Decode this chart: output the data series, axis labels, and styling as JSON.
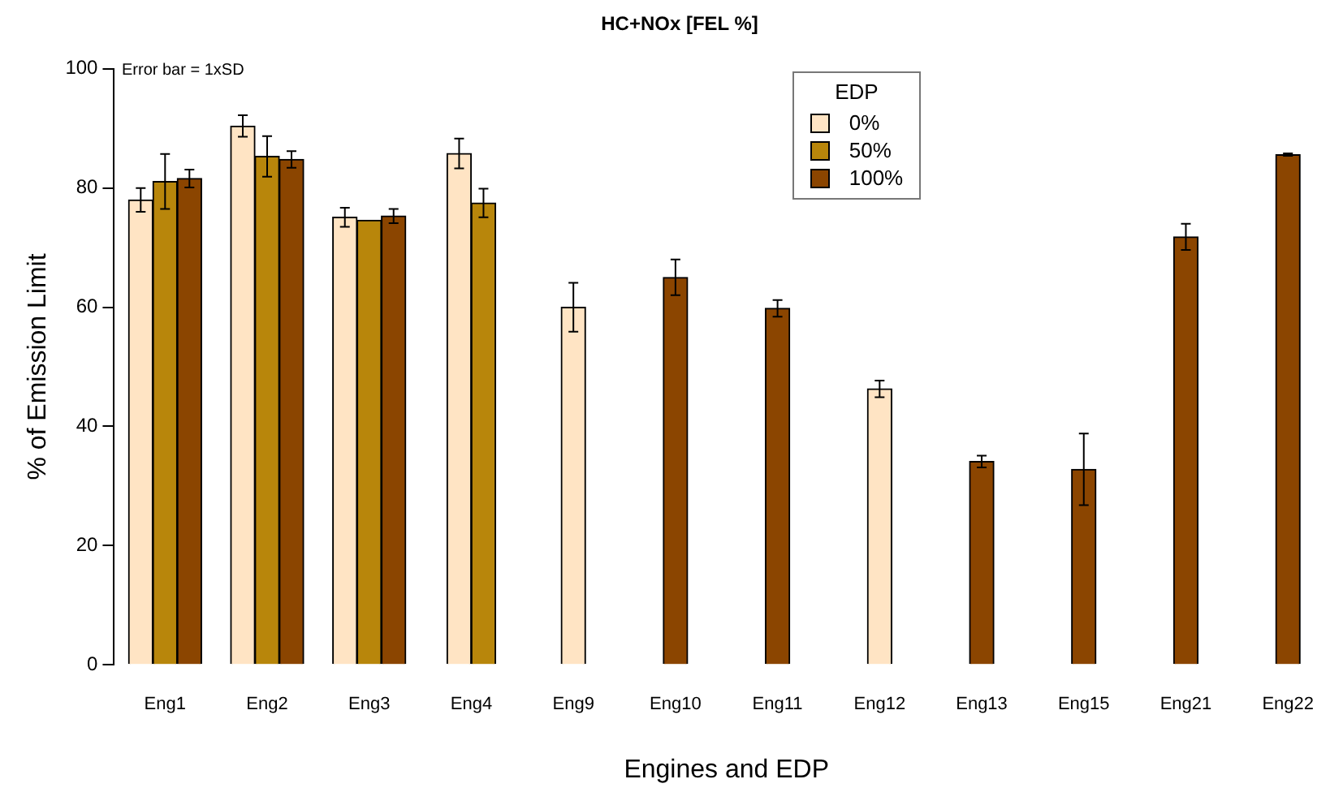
{
  "chart_data": {
    "type": "bar",
    "title": "HC+NOx [FEL %]",
    "xlabel": "Engines and EDP",
    "ylabel": "% of Emission Limit",
    "legend_title": "EDP",
    "legend": "top",
    "grid": false,
    "annotations": [
      "Error bar = 1xSD"
    ],
    "categories": [
      "Eng1",
      "Eng2",
      "Eng3",
      "Eng4",
      "Eng9",
      "Eng10",
      "Eng11",
      "Eng12",
      "Eng13",
      "Eng15",
      "Eng21",
      "Eng22"
    ],
    "ylim": [
      0,
      100
    ],
    "yticks": [
      0,
      20,
      40,
      60,
      80,
      100
    ],
    "series": [
      {
        "name": "0%",
        "color": "#ffe4c4",
        "values": [
          78,
          90.4,
          75.1,
          85.8,
          60,
          null,
          null,
          46.3,
          null,
          null,
          null,
          null
        ],
        "errors": [
          2,
          1.8,
          1.6,
          2.5,
          4.1,
          null,
          null,
          1.4,
          null,
          null,
          null,
          null
        ]
      },
      {
        "name": "50%",
        "color": "#b8860b",
        "values": [
          81.1,
          85.3,
          74.6,
          77.5,
          null,
          null,
          null,
          null,
          null,
          null,
          null,
          null
        ],
        "errors": [
          4.6,
          3.4,
          null,
          2.4,
          null,
          null,
          null,
          null,
          null,
          null,
          null,
          null
        ]
      },
      {
        "name": "100%",
        "color": "#8b4500",
        "values": [
          81.6,
          84.8,
          75.3,
          null,
          null,
          65,
          59.8,
          null,
          34.1,
          32.8,
          71.8,
          85.6
        ],
        "errors": [
          1.5,
          1.4,
          1.2,
          null,
          null,
          3,
          1.4,
          null,
          1,
          6,
          2.2,
          0.2
        ]
      }
    ]
  }
}
